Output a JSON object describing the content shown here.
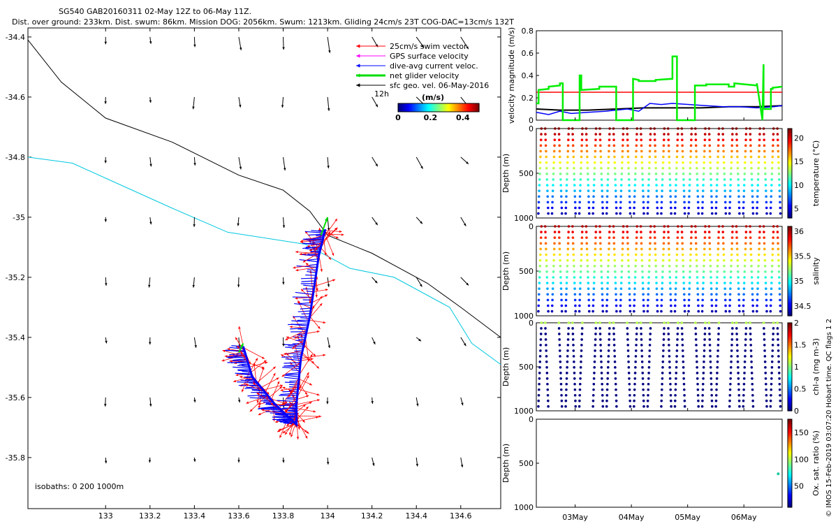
{
  "header": {
    "title_line1": "SG540 GAB20160311 02-May 12Z to 06-May 11Z.",
    "title_line2": "Dist. over ground: 233km. Dist. swum: 86km. Mission DOG: 2056km. Swum: 1213km. Gliding 24cm/s 23T COG-DAC=13cm/s 132T"
  },
  "chart_data": [
    {
      "type": "scatter",
      "name": "track-map",
      "xlim": [
        132.65,
        134.78
      ],
      "ylim": [
        -35.97,
        -34.37
      ],
      "x_ticks": [
        133,
        133.2,
        133.4,
        133.6,
        133.8,
        134,
        134.2,
        134.4,
        134.6
      ],
      "x_tick_labels": [
        "133",
        "133.2",
        "133.4",
        "133.6",
        "133.8",
        "134",
        "134.2",
        "134.4",
        "134.6"
      ],
      "y_ticks": [
        -34.4,
        -34.6,
        -34.8,
        -35,
        -35.2,
        -35.4,
        -35.6,
        -35.8
      ],
      "y_tick_labels": [
        "-34.4",
        "-34.6",
        "-34.8",
        "-35",
        "-35.2",
        "-35.4",
        "-35.6",
        "-35.8"
      ],
      "legend": {
        "placement": "top-right",
        "entries": [
          {
            "label": "25cm/s swim vector",
            "color": "#ff0000"
          },
          {
            "label": "GPS surface velocity",
            "color": "#ff00ff"
          },
          {
            "label": "dive-avg current veloc.",
            "color": "#0000ff"
          },
          {
            "label": "net glider velocity",
            "color": "#00dd00"
          },
          {
            "label": "sfc geo. vel. 06-May-2016",
            "color": "#000000"
          }
        ],
        "scale_label": "12h"
      },
      "colorbar": {
        "title": "(m/s)",
        "tick_labels": [
          "0",
          "0.2",
          "0.4"
        ],
        "range": [
          0,
          0.5
        ]
      },
      "isobath_label": "isobaths: 0   200  1000m",
      "isobath_200": [
        [
          132.65,
          -34.41
        ],
        [
          132.8,
          -34.55
        ],
        [
          133.0,
          -34.67
        ],
        [
          133.3,
          -34.75
        ],
        [
          133.6,
          -34.86
        ],
        [
          133.8,
          -34.91
        ],
        [
          133.92,
          -34.98
        ],
        [
          134.0,
          -35.06
        ],
        [
          134.2,
          -35.12
        ],
        [
          134.45,
          -35.22
        ],
        [
          134.6,
          -35.3
        ],
        [
          134.78,
          -35.4
        ]
      ],
      "isobath_1000": [
        [
          132.65,
          -34.8
        ],
        [
          132.85,
          -34.82
        ],
        [
          133.0,
          -34.87
        ],
        [
          133.3,
          -34.97
        ],
        [
          133.55,
          -35.05
        ],
        [
          133.9,
          -35.09
        ],
        [
          134.1,
          -35.17
        ],
        [
          134.3,
          -35.2
        ],
        [
          134.55,
          -35.3
        ],
        [
          134.65,
          -35.42
        ],
        [
          134.78,
          -35.49
        ]
      ],
      "glider_track": [
        [
          133.62,
          -35.43
        ],
        [
          133.66,
          -35.53
        ],
        [
          133.76,
          -35.62
        ],
        [
          133.86,
          -35.69
        ],
        [
          133.86,
          -35.62
        ],
        [
          133.88,
          -35.47
        ],
        [
          133.92,
          -35.33
        ],
        [
          133.96,
          -35.13
        ],
        [
          133.99,
          -35.04
        ]
      ],
      "geo_vector_grid": {
        "lons": [
          133.0,
          133.2,
          133.4,
          133.6,
          133.8,
          134.0,
          134.2,
          134.4,
          134.6
        ],
        "lats": [
          -34.4,
          -34.6,
          -34.8,
          -35.0,
          -35.2,
          -35.4,
          -35.6,
          -35.8
        ],
        "u_v_note_free": true
      }
    },
    {
      "type": "line",
      "name": "velocity-magnitude",
      "ylabel": "velocity magnitude (m/s)",
      "ylim": [
        0,
        0.8
      ],
      "y_ticks": [
        0,
        0.2,
        0.4,
        0.6,
        0.8
      ],
      "xlim": [
        0.58,
        4.95
      ],
      "series": [
        {
          "color": "#ff0000",
          "x": [
            0.58,
            4.95
          ],
          "y": [
            0.25,
            0.25
          ]
        },
        {
          "color": "#000000",
          "x": [
            0.58,
            1.0,
            1.5,
            2.0,
            2.5,
            3.0,
            3.5,
            4.0,
            4.5,
            4.95
          ],
          "y": [
            0.1,
            0.09,
            0.09,
            0.1,
            0.11,
            0.11,
            0.11,
            0.12,
            0.12,
            0.13
          ]
        },
        {
          "color": "#0000ff",
          "x": [
            0.58,
            0.8,
            1.0,
            1.2,
            1.5,
            1.8,
            2.0,
            2.2,
            2.4,
            2.6,
            2.8,
            3.0,
            3.3,
            3.6,
            3.9,
            4.2,
            4.5,
            4.8,
            4.95
          ],
          "y": [
            0.07,
            0.05,
            0.08,
            0.06,
            0.07,
            0.08,
            0.09,
            0.1,
            0.08,
            0.15,
            0.14,
            0.15,
            0.14,
            0.13,
            0.12,
            0.12,
            0.11,
            0.12,
            0.13
          ]
        },
        {
          "color": "#00ee00",
          "x": [
            0.58,
            0.62,
            0.62,
            0.8,
            0.8,
            1.0,
            1.0,
            1.05,
            1.05,
            1.35,
            1.35,
            1.38,
            1.38,
            1.7,
            1.7,
            2.0,
            2.0,
            2.3,
            2.3,
            2.4,
            2.4,
            2.7,
            2.7,
            3.0,
            3.0,
            3.08,
            3.08,
            3.4,
            3.4,
            3.6,
            3.6,
            4.0,
            4.0,
            4.1,
            4.1,
            4.5,
            4.5,
            4.6,
            4.6,
            4.62,
            4.62,
            4.75,
            4.75,
            4.78,
            4.78,
            4.95
          ],
          "y": [
            0.15,
            0.15,
            0.27,
            0.28,
            0.3,
            0.31,
            0.33,
            0.33,
            0.0,
            0.0,
            0.4,
            0.4,
            0.27,
            0.28,
            0.3,
            0.3,
            0.0,
            0.0,
            0.37,
            0.36,
            0.35,
            0.35,
            0.36,
            0.37,
            0.57,
            0.57,
            0.0,
            0.0,
            0.31,
            0.31,
            0.32,
            0.32,
            0.3,
            0.3,
            0.33,
            0.31,
            0.33,
            0.0,
            0.0,
            0.5,
            0.1,
            0.1,
            0.28,
            0.28,
            0.29,
            0.3
          ]
        }
      ]
    },
    {
      "type": "scatter",
      "name": "temperature-profile",
      "ylabel": "Depth (m)",
      "ylim": [
        1000,
        0
      ],
      "y_ticks": [
        0,
        500,
        1000
      ],
      "colorbar_label": "temperature (°C)",
      "colorbar_ticks": [
        "5",
        "10",
        "15",
        "20"
      ],
      "clim": [
        3,
        22
      ],
      "dives_per_day": 4.2
    },
    {
      "type": "scatter",
      "name": "salinity-profile",
      "ylabel": "Depth (m)",
      "ylim": [
        1000,
        0
      ],
      "y_ticks": [
        0,
        500,
        1000
      ],
      "colorbar_label": "salinity",
      "colorbar_ticks": [
        "34.5",
        "35",
        "35.5",
        "36"
      ],
      "clim": [
        34.3,
        36.1
      ]
    },
    {
      "type": "scatter",
      "name": "chla-profile",
      "ylabel": "Depth (m)",
      "ylim": [
        1000,
        0
      ],
      "y_ticks": [
        0,
        500,
        1000
      ],
      "colorbar_label": "chl-a (mg m-3)",
      "colorbar_ticks": [
        "0",
        "0.5",
        "1",
        "1.5",
        "2"
      ],
      "clim": [
        0,
        2
      ]
    },
    {
      "type": "scatter",
      "name": "oxygen-profile",
      "ylabel": "Depth (m)",
      "ylim": [
        1000,
        0
      ],
      "y_ticks": [
        0,
        500,
        1000
      ],
      "colorbar_label": "Ox. sat. ratio (%)",
      "colorbar_ticks": [
        "50",
        "100",
        "150"
      ],
      "clim": [
        10,
        175
      ],
      "points": [
        {
          "x": 4.88,
          "y": 620
        }
      ]
    }
  ],
  "time_axis": {
    "ticks": [
      1.27,
      2.27,
      3.27,
      4.27
    ],
    "labels": [
      "03May",
      "04May",
      "05May",
      "06May"
    ],
    "xlim": [
      0.58,
      4.95
    ]
  },
  "side_label": "© IMOS 15-Feb-2019 03:07:20 Hobart time. QC flags 1  2",
  "colors": {
    "swim": "#ff0000",
    "gps": "#ff00ff",
    "dac": "#0000ff",
    "net": "#00dd00",
    "geo": "#000000",
    "isobath200": "#000000",
    "isobath1000": "#00c8e0"
  }
}
